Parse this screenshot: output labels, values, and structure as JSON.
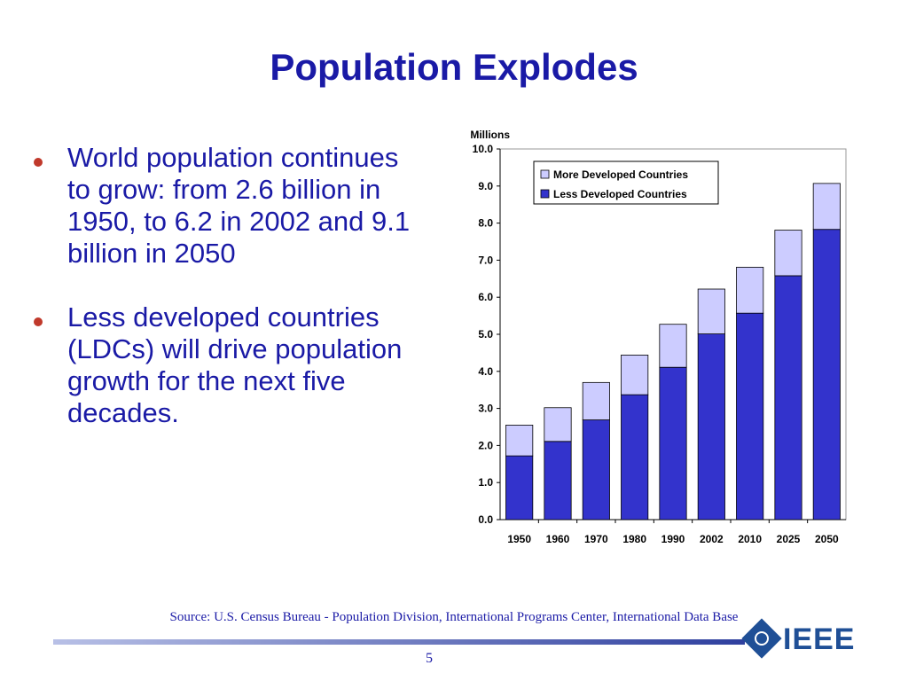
{
  "slide": {
    "title": "Population Explodes",
    "bullets": [
      "World population continues to grow: from 2.6 billion in 1950, to 6.2 in 2002 and 9.1 billion in 2050",
      "Less developed countries (LDCs) will drive population growth for the next five decades."
    ],
    "source": "Source:  U.S. Census Bureau - Population Division, International Programs Center, International Data Base",
    "page_number": "5",
    "logo_text": "IEEE"
  },
  "colors": {
    "title": "#1a1aa6",
    "bullet_dot": "#c0392b",
    "less_developed": "#3333cc",
    "more_developed": "#ccccff",
    "footer_rule_start": "#b8c0e6",
    "footer_rule_end": "#2e3f9e",
    "logo": "#1f4f96"
  },
  "chart_data": {
    "type": "bar",
    "stacked": true,
    "title": "",
    "ylabel": "Millions",
    "xlabel": "",
    "categories": [
      "1950",
      "1960",
      "1970",
      "1980",
      "1990",
      "2002",
      "2010",
      "2025",
      "2050"
    ],
    "series": [
      {
        "name": "Less Developed Countries",
        "values": [
          1.72,
          2.11,
          2.69,
          3.37,
          4.11,
          5.01,
          5.57,
          6.58,
          7.83
        ],
        "color": "#3333cc"
      },
      {
        "name": "More Developed Countries",
        "values": [
          0.83,
          0.91,
          1.01,
          1.07,
          1.16,
          1.21,
          1.24,
          1.23,
          1.24
        ],
        "color": "#ccccff"
      }
    ],
    "ylim": [
      0,
      10
    ],
    "yticks": [
      "0.0",
      "1.0",
      "2.0",
      "3.0",
      "4.0",
      "5.0",
      "6.0",
      "7.0",
      "8.0",
      "9.0",
      "10.0"
    ],
    "legend_order": [
      "More Developed Countries",
      "Less Developed Countries"
    ],
    "legend_position": "top-left",
    "grid": false
  }
}
